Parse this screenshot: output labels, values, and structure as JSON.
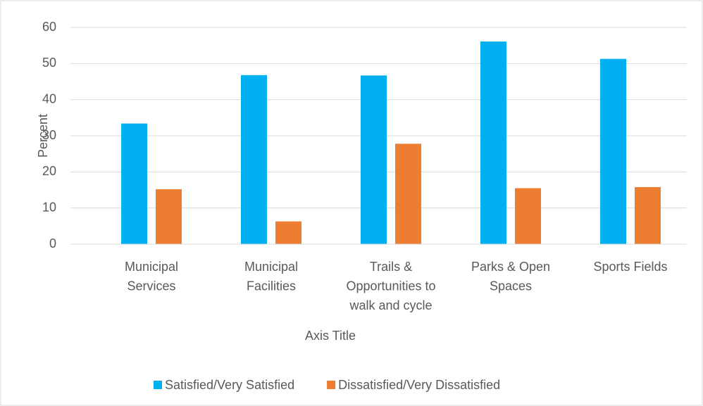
{
  "chart_data": {
    "type": "bar",
    "categories": [
      "Municipal Services",
      "Municipal Facilities",
      "Trails & Opportunities to walk and cycle",
      "Parks & Open Spaces",
      "Sports Fields"
    ],
    "series": [
      {
        "name": "Satisfied/Very Satisfied",
        "color": "#00b0f0",
        "values": [
          33.4,
          46.8,
          46.7,
          56.1,
          51.3
        ]
      },
      {
        "name": "Dissatisfied/Very Dissatisfied",
        "color": "#ed7d31",
        "values": [
          15.2,
          6.3,
          27.8,
          15.5,
          15.8
        ]
      }
    ],
    "xlabel": "Axis Title",
    "ylabel": "Percent",
    "ylim": [
      0,
      60
    ],
    "yticks": [
      0,
      10,
      20,
      30,
      40,
      50,
      60
    ],
    "grid": true,
    "legend": "bottom"
  }
}
